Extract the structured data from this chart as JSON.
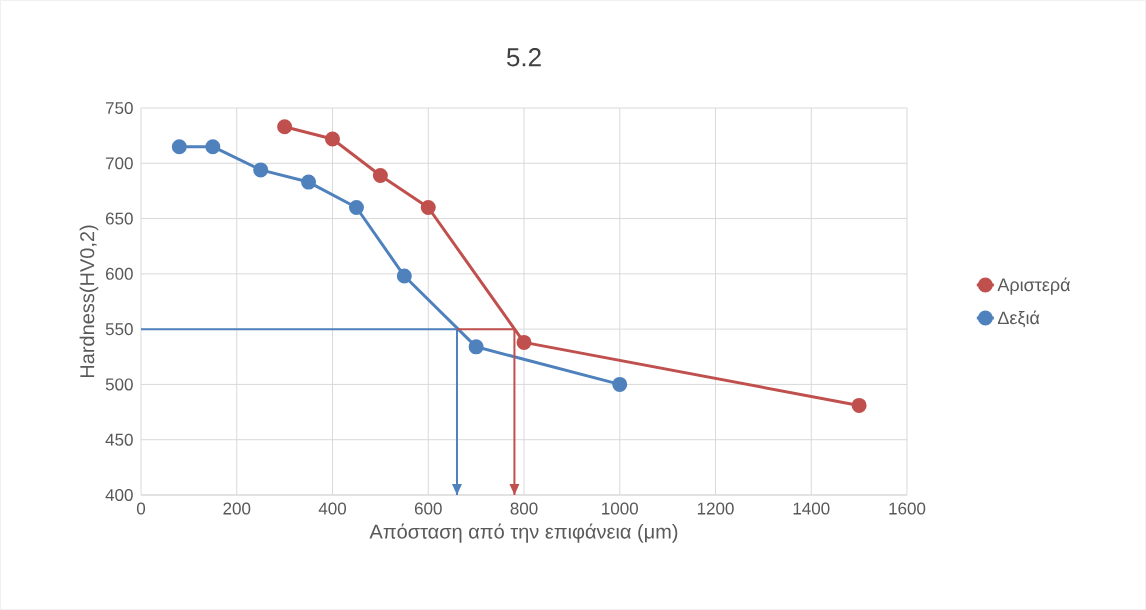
{
  "chart_data": {
    "type": "line",
    "title": "5.2",
    "xlabel": "Απόσταση από την επιφάνεια (μm)",
    "ylabel": "Hardness(HV0,2)",
    "xlim": [
      0,
      1600
    ],
    "xticks": [
      0,
      200,
      400,
      600,
      800,
      1000,
      1200,
      1400,
      1600
    ],
    "ylim": [
      400,
      750
    ],
    "yticks": [
      400,
      450,
      500,
      550,
      600,
      650,
      700,
      750
    ],
    "grid": true,
    "legend": "right",
    "marker": "circle",
    "series": [
      {
        "name": "Αριστερά",
        "color": "#c0504d",
        "x": [
          300,
          400,
          500,
          600,
          800,
          1500
        ],
        "values": [
          733,
          722,
          689,
          660,
          538,
          481
        ]
      },
      {
        "name": "Δεξιά",
        "color": "#4f81bd",
        "x": [
          80,
          150,
          250,
          350,
          450,
          550,
          700,
          1000
        ],
        "values": [
          715,
          715,
          694,
          683,
          660,
          598,
          534,
          500
        ]
      },
      {
        "color": "#4f81bd",
        "marker": "none",
        "x": [
          0,
          660,
          660
        ],
        "values": [
          550,
          550,
          400
        ]
      },
      {
        "color": "#c0504d",
        "marker": "none",
        "x": [
          660,
          780,
          780
        ],
        "values": [
          550,
          550,
          400
        ]
      }
    ]
  }
}
